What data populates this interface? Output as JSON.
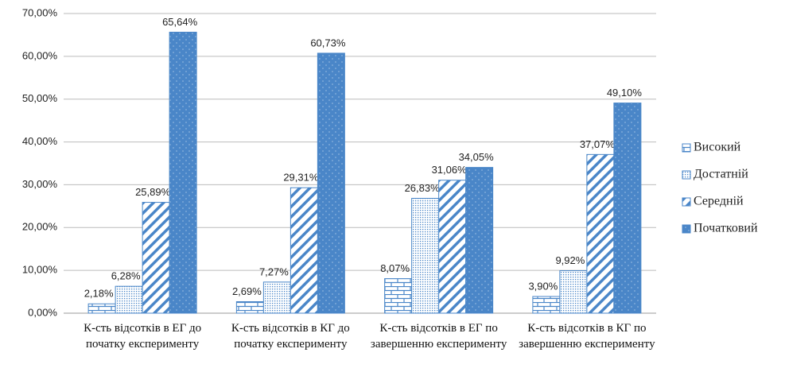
{
  "chart_data": {
    "type": "bar",
    "categories": [
      "К-сть відсотків в ЕГ до початку експерименту",
      "К-сть відсотків в КГ до початку експерименту",
      "К-сть відсотків в ЕГ по завершенню експерименту",
      "К-сть відсотків в КГ по завершенню експерименту"
    ],
    "series": [
      {
        "name": "Високий",
        "color": "#4a86c8",
        "pattern": "brick",
        "values": [
          2.18,
          2.69,
          8.07,
          3.9
        ],
        "value_labels": [
          "2,18%",
          "2,69%",
          "8,07%",
          "3,90%"
        ]
      },
      {
        "name": "Достатній",
        "color": "#4a86c8",
        "pattern": "dots",
        "values": [
          6.28,
          7.27,
          26.83,
          9.92
        ],
        "value_labels": [
          "6,28%",
          "7,27%",
          "26,83%",
          "9,92%"
        ]
      },
      {
        "name": "Середній",
        "color": "#4a86c8",
        "pattern": "stripes",
        "values": [
          25.89,
          29.31,
          31.06,
          37.07
        ],
        "value_labels": [
          "25,89%",
          "29,31%",
          "31,06%",
          "37,07%"
        ]
      },
      {
        "name": "Початковий",
        "color": "#4a86c8",
        "pattern": "solid",
        "values": [
          65.64,
          60.73,
          34.05,
          49.1
        ],
        "value_labels": [
          "65,64%",
          "60,73%",
          "34,05%",
          "49,10%"
        ]
      }
    ],
    "ylim": [
      0,
      70
    ],
    "yticks": [
      {
        "value": 0,
        "label": "0,00%"
      },
      {
        "value": 10,
        "label": "10,00%"
      },
      {
        "value": 20,
        "label": "20,00%"
      },
      {
        "value": 30,
        "label": "30,00%"
      },
      {
        "value": 40,
        "label": "40,00%"
      },
      {
        "value": 50,
        "label": "50,00%"
      },
      {
        "value": 60,
        "label": "60,00%"
      },
      {
        "value": 70,
        "label": "70,00%"
      }
    ],
    "grid": true,
    "legend": "right"
  }
}
